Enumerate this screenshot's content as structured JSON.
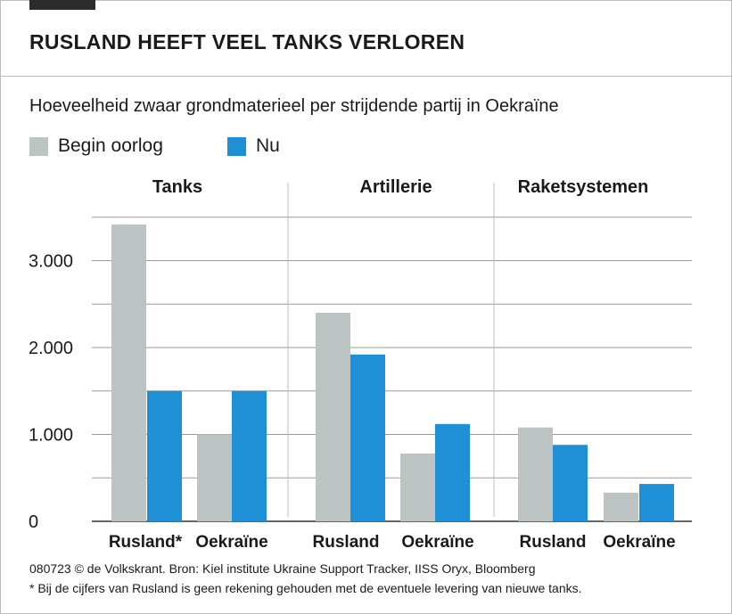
{
  "title": "RUSLAND HEEFT VEEL TANKS VERLOREN",
  "subtitle": "Hoeveelheid zwaar grondmaterieel per strijdende partij in Oekraïne",
  "legend": [
    {
      "label": "Begin oorlog",
      "color": "#bcc4c3"
    },
    {
      "label": "Nu",
      "color": "#1f8fd6"
    }
  ],
  "footer": {
    "source": "080723 © de Volkskrant. Bron: Kiel institute Ukraine Support Tracker, IISS Oryx, Bloomberg",
    "note": "* Bij de cijfers van Rusland is geen rekening gehouden met de eventuele levering van nieuwe tanks."
  },
  "chart_data": {
    "type": "bar",
    "ylim": [
      0,
      3700
    ],
    "yticks": [
      {
        "value": 0,
        "label": "0"
      },
      {
        "value": 1000,
        "label": "1.000"
      },
      {
        "value": 2000,
        "label": "2.000"
      },
      {
        "value": 3000,
        "label": "3.000"
      }
    ],
    "grid": true,
    "legend_position": "top-left",
    "panels": [
      {
        "title": "Tanks",
        "categories": [
          "Rusland*",
          "Oekraïne"
        ],
        "series": [
          {
            "name": "Begin oorlog",
            "color": "#bcc4c3",
            "values": [
              3417,
              1000
            ]
          },
          {
            "name": "Nu",
            "color": "#1f8fd6",
            "values": [
              1500,
              1500
            ]
          }
        ]
      },
      {
        "title": "Artillerie",
        "categories": [
          "Rusland",
          "Oekraïne"
        ],
        "series": [
          {
            "name": "Begin oorlog",
            "color": "#bcc4c3",
            "values": [
              2400,
              780
            ]
          },
          {
            "name": "Nu",
            "color": "#1f8fd6",
            "values": [
              1920,
              1120
            ]
          }
        ]
      },
      {
        "title": "Raketsystemen",
        "categories": [
          "Rusland",
          "Oekraïne"
        ],
        "series": [
          {
            "name": "Begin oorlog",
            "color": "#bcc4c3",
            "values": [
              1080,
              330
            ]
          },
          {
            "name": "Nu",
            "color": "#1f8fd6",
            "values": [
              880,
              430
            ]
          }
        ]
      }
    ]
  }
}
